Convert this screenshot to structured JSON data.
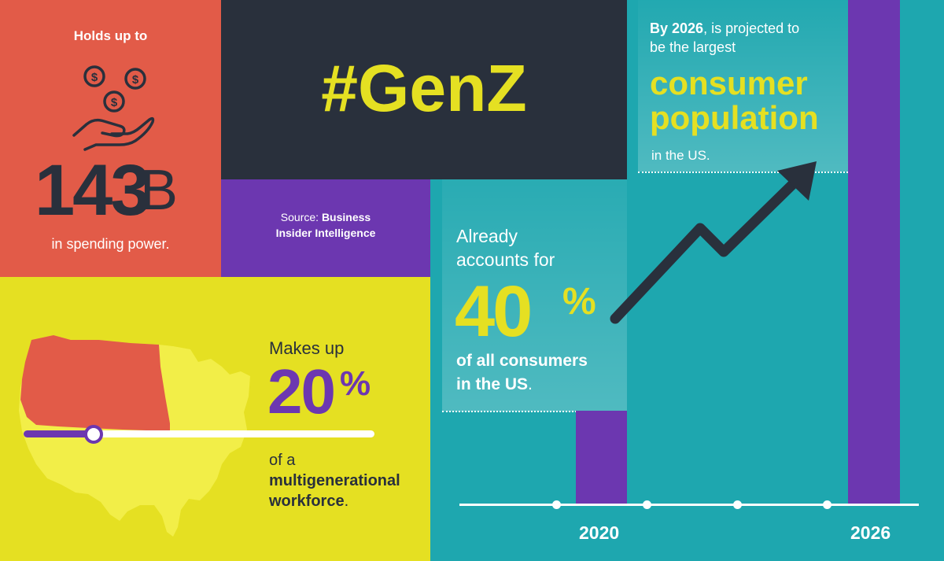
{
  "spending": {
    "intro": "Holds up to",
    "amount": "143",
    "unit": "B",
    "caption": "in spending power."
  },
  "title": "#GenZ",
  "source": {
    "label": "Source:",
    "name_line1": "Business",
    "name_line2": "Insider Intelligence"
  },
  "workforce": {
    "intro": "Makes up",
    "percent": "20",
    "percent_sign": "%",
    "of_a": "of a",
    "bold_line": "multigenerational",
    "last_line": "workforce",
    "period": ".",
    "progress_fraction": 0.2
  },
  "consumers_now": {
    "line1": "Already",
    "line2": "accounts for",
    "percent": "40",
    "percent_sign": "%",
    "line3": "of all consumers",
    "line4": "in the US",
    "period": "."
  },
  "projection": {
    "year_bold": "By 2026",
    "text1": ", is projected to",
    "text2": "be the largest",
    "highlight1": "consumer",
    "highlight2": "population",
    "text3": "in the US."
  },
  "timeline": {
    "years": [
      "2020",
      "2026"
    ]
  },
  "colors": {
    "coral": "#e25b48",
    "navy": "#29303c",
    "purple": "#6c37b0",
    "yellow": "#e5e022",
    "teal": "#1ea7af"
  },
  "icons": [
    "money-hand-icon",
    "usa-map-icon",
    "trend-arrow-icon"
  ]
}
